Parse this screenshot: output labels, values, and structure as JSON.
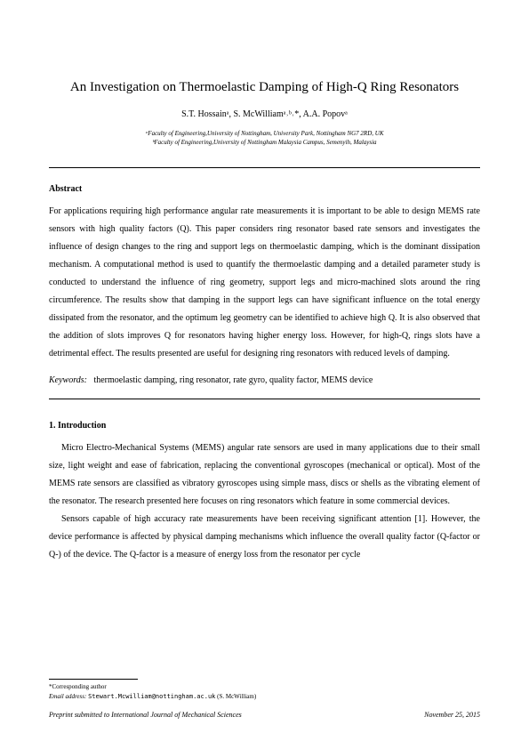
{
  "title": "An Investigation on Thermoelastic Damping of High-Q Ring Resonators",
  "authors_html": "S.T. Hossainᵃ, S. McWilliamᵃ˒ᵇ˒*, A.A. Popovᵃ",
  "affiliations": {
    "a": "ᵃFaculty of Engineering,University of Nottingham, University Park, Nottingham NG7 2RD, UK",
    "b": "ᵇFaculty of Engineering,University of Nottingham Malaysia Campus, Semenyih, Malaysia"
  },
  "abstract": {
    "heading": "Abstract",
    "body": "For applications requiring high performance angular rate measurements it is important to be able to design MEMS rate sensors with high quality factors (Q). This paper considers ring resonator based rate sensors and investigates the influence of design changes to the ring and support legs on thermoelastic damping, which is the dominant dissipation mechanism. A computational method is used to quantify the thermoelastic damping and a detailed parameter study is conducted to understand the influence of ring geometry, support legs and micro-machined slots around the ring circumference. The results show that damping in the support legs can have significant influence on the total energy dissipated from the resonator, and the optimum leg geometry can be identified to achieve high Q. It is also observed that the addition of slots improves Q for resonators having higher energy loss. However, for high-Q, rings slots have a detrimental effect. The results presented are useful for designing ring resonators with reduced levels of damping.",
    "keywords_label": "Keywords:",
    "keywords": "thermoelastic damping, ring resonator, rate gyro, quality factor, MEMS device"
  },
  "section1": {
    "heading": "1. Introduction",
    "para1": "Micro Electro-Mechanical Systems (MEMS) angular rate sensors are used in many applications due to their small size, light weight and ease of fabrication, replacing the conventional gyroscopes (mechanical or optical). Most of the MEMS rate sensors are classified as vibratory gyroscopes using simple mass, discs or shells as the vibrating element of the resonator. The research presented here focuses on ring resonators which feature in some commercial devices.",
    "para2": "Sensors capable of high accuracy rate measurements have been receiving significant attention [1]. However, the device performance is affected by physical damping mechanisms which influence the overall quality factor (Q-factor or Q-) of the device. The Q-factor is a measure of energy loss from the resonator per cycle"
  },
  "footnotes": {
    "corr": "*Corresponding author",
    "email_label": "Email address:",
    "email": "Stewart.Mcwilliam@nottingham.ac.uk",
    "email_name": "(S. McWilliam)"
  },
  "preprint": {
    "left": "Preprint submitted to International Journal of Mechanical Sciences",
    "right": "November 25, 2015"
  }
}
